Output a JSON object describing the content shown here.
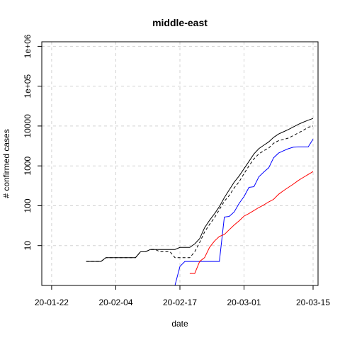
{
  "chart_data": {
    "type": "line",
    "title": "middle-east",
    "xlabel": "date",
    "ylabel": "# confirmed cases",
    "y_scale": "log",
    "grid": true,
    "x_ticks": [
      "20-01-22",
      "20-02-04",
      "20-02-17",
      "20-03-01",
      "20-03-15"
    ],
    "y_ticks": [
      "10",
      "100",
      "1000",
      "10000",
      "1e+05",
      "1e+06"
    ],
    "xlim": [
      "2020-01-20",
      "2020-03-16"
    ],
    "ylim": [
      1,
      1300000
    ],
    "series": [
      {
        "color": "#000000",
        "dash": "solid",
        "points": [
          [
            "2020-01-29",
            4
          ],
          [
            "2020-02-01",
            4
          ],
          [
            "2020-02-02",
            5
          ],
          [
            "2020-02-04",
            5
          ],
          [
            "2020-02-06",
            5
          ],
          [
            "2020-02-08",
            5
          ],
          [
            "2020-02-09",
            7
          ],
          [
            "2020-02-10",
            7
          ],
          [
            "2020-02-11",
            8
          ],
          [
            "2020-02-13",
            8
          ],
          [
            "2020-02-16",
            8
          ],
          [
            "2020-02-17",
            9
          ],
          [
            "2020-02-19",
            9
          ],
          [
            "2020-02-20",
            11
          ],
          [
            "2020-02-21",
            15
          ],
          [
            "2020-02-22",
            28
          ],
          [
            "2020-02-23",
            43
          ],
          [
            "2020-02-24",
            63
          ],
          [
            "2020-02-25",
            95
          ],
          [
            "2020-02-26",
            160
          ],
          [
            "2020-02-27",
            250
          ],
          [
            "2020-02-28",
            390
          ],
          [
            "2020-02-29",
            560
          ],
          [
            "2020-03-01",
            850
          ],
          [
            "2020-03-02",
            1300
          ],
          [
            "2020-03-03",
            2000
          ],
          [
            "2020-03-04",
            2700
          ],
          [
            "2020-03-05",
            3300
          ],
          [
            "2020-03-06",
            4000
          ],
          [
            "2020-03-07",
            5200
          ],
          [
            "2020-03-08",
            6300
          ],
          [
            "2020-03-09",
            7200
          ],
          [
            "2020-03-10",
            8200
          ],
          [
            "2020-03-11",
            9500
          ],
          [
            "2020-03-12",
            11000
          ],
          [
            "2020-03-13",
            12500
          ],
          [
            "2020-03-14",
            14000
          ],
          [
            "2020-03-15",
            15500
          ]
        ]
      },
      {
        "color": "#000000",
        "dash": "dashed",
        "points": [
          [
            "2020-01-29",
            4
          ],
          [
            "2020-02-01",
            4
          ],
          [
            "2020-02-02",
            5
          ],
          [
            "2020-02-04",
            5
          ],
          [
            "2020-02-06",
            5
          ],
          [
            "2020-02-08",
            5
          ],
          [
            "2020-02-09",
            7
          ],
          [
            "2020-02-10",
            7
          ],
          [
            "2020-02-11",
            8
          ],
          [
            "2020-02-12",
            8
          ],
          [
            "2020-02-13",
            7
          ],
          [
            "2020-02-15",
            7
          ],
          [
            "2020-02-16",
            5
          ],
          [
            "2020-02-19",
            5
          ],
          [
            "2020-02-20",
            7
          ],
          [
            "2020-02-21",
            12
          ],
          [
            "2020-02-22",
            22
          ],
          [
            "2020-02-23",
            34
          ],
          [
            "2020-02-24",
            50
          ],
          [
            "2020-02-25",
            80
          ],
          [
            "2020-02-26",
            130
          ],
          [
            "2020-02-27",
            180
          ],
          [
            "2020-02-28",
            280
          ],
          [
            "2020-02-29",
            400
          ],
          [
            "2020-03-01",
            640
          ],
          [
            "2020-03-02",
            1000
          ],
          [
            "2020-03-03",
            1500
          ],
          [
            "2020-03-04",
            2000
          ],
          [
            "2020-03-05",
            2400
          ],
          [
            "2020-03-06",
            2800
          ],
          [
            "2020-03-07",
            3700
          ],
          [
            "2020-03-08",
            4300
          ],
          [
            "2020-03-09",
            4600
          ],
          [
            "2020-03-10",
            5000
          ],
          [
            "2020-03-11",
            5800
          ],
          [
            "2020-03-12",
            6700
          ],
          [
            "2020-03-13",
            7800
          ],
          [
            "2020-03-14",
            9300
          ],
          [
            "2020-03-15",
            10000
          ]
        ]
      },
      {
        "color": "#0000ff",
        "dash": "solid",
        "points": [
          [
            "2020-02-14",
            1
          ],
          [
            "2020-02-16",
            1
          ],
          [
            "2020-02-17",
            3
          ],
          [
            "2020-02-18",
            4
          ],
          [
            "2020-02-20",
            4
          ],
          [
            "2020-02-22",
            4
          ],
          [
            "2020-02-24",
            4
          ],
          [
            "2020-02-25",
            4
          ],
          [
            "2020-02-26",
            52
          ],
          [
            "2020-02-27",
            54
          ],
          [
            "2020-02-28",
            70
          ],
          [
            "2020-02-29",
            115
          ],
          [
            "2020-03-01",
            170
          ],
          [
            "2020-03-02",
            290
          ],
          [
            "2020-03-03",
            300
          ],
          [
            "2020-03-04",
            530
          ],
          [
            "2020-03-05",
            700
          ],
          [
            "2020-03-06",
            900
          ],
          [
            "2020-03-07",
            1600
          ],
          [
            "2020-03-08",
            2100
          ],
          [
            "2020-03-09",
            2400
          ],
          [
            "2020-03-10",
            2700
          ],
          [
            "2020-03-11",
            2950
          ],
          [
            "2020-03-12",
            3000
          ],
          [
            "2020-03-13",
            3000
          ],
          [
            "2020-03-14",
            3000
          ],
          [
            "2020-03-15",
            4700
          ]
        ]
      },
      {
        "color": "#ff0000",
        "dash": "solid",
        "points": [
          [
            "2020-02-19",
            2
          ],
          [
            "2020-02-20",
            2
          ],
          [
            "2020-02-21",
            4
          ],
          [
            "2020-02-22",
            5
          ],
          [
            "2020-02-23",
            9
          ],
          [
            "2020-02-24",
            13
          ],
          [
            "2020-02-25",
            17
          ],
          [
            "2020-02-26",
            19
          ],
          [
            "2020-02-27",
            25
          ],
          [
            "2020-02-28",
            33
          ],
          [
            "2020-02-29",
            42
          ],
          [
            "2020-03-01",
            55
          ],
          [
            "2020-03-02",
            64
          ],
          [
            "2020-03-03",
            76
          ],
          [
            "2020-03-04",
            90
          ],
          [
            "2020-03-05",
            105
          ],
          [
            "2020-03-06",
            125
          ],
          [
            "2020-03-07",
            145
          ],
          [
            "2020-03-08",
            194
          ],
          [
            "2020-03-09",
            240
          ],
          [
            "2020-03-10",
            290
          ],
          [
            "2020-03-11",
            350
          ],
          [
            "2020-03-12",
            430
          ],
          [
            "2020-03-13",
            514
          ],
          [
            "2020-03-14",
            610
          ],
          [
            "2020-03-15",
            720
          ]
        ]
      }
    ]
  }
}
